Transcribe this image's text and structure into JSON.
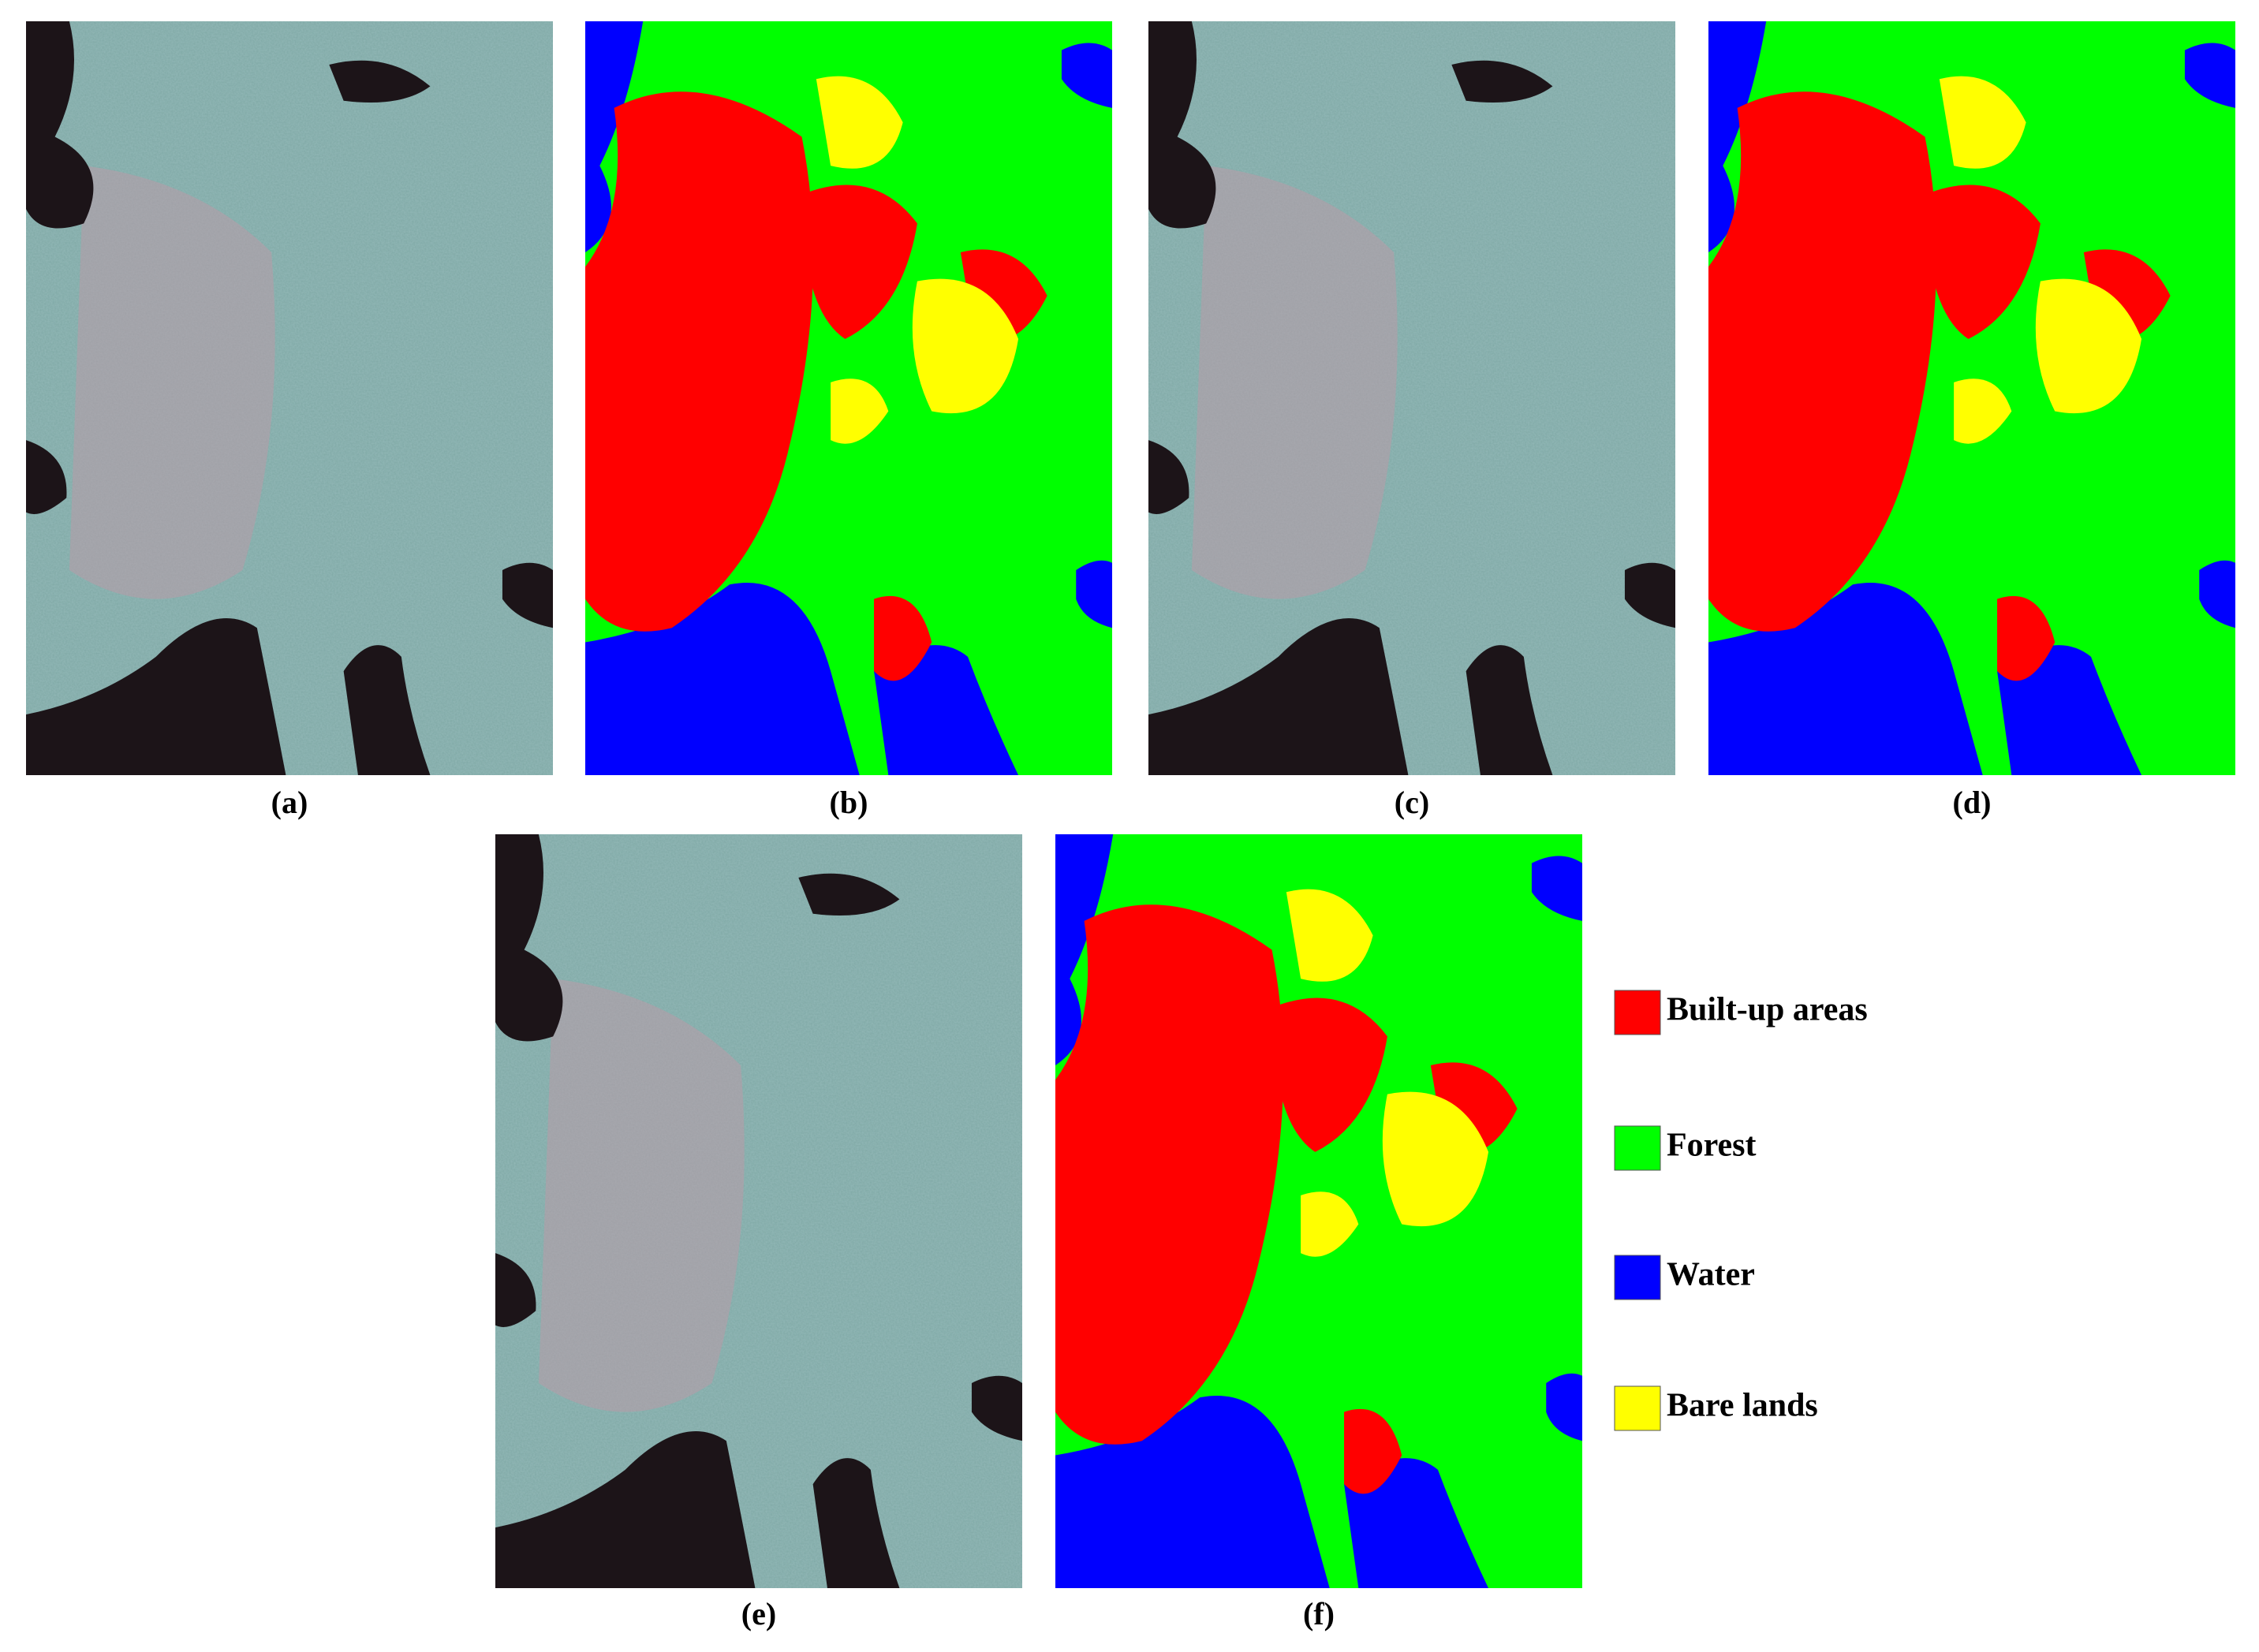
{
  "panels": [
    {
      "label": "(a)"
    },
    {
      "label": "(b)"
    },
    {
      "label": "(c)"
    },
    {
      "label": "(d)"
    },
    {
      "label": "(e)"
    },
    {
      "label": "(f)"
    }
  ],
  "legend": [
    {
      "label": "Built-up areas",
      "color": "#ff0000"
    },
    {
      "label": "Forest",
      "color": "#00ff00"
    },
    {
      "label": "Water",
      "color": "#0000ff"
    },
    {
      "label": "Bare lands",
      "color": "#ffff00"
    }
  ]
}
